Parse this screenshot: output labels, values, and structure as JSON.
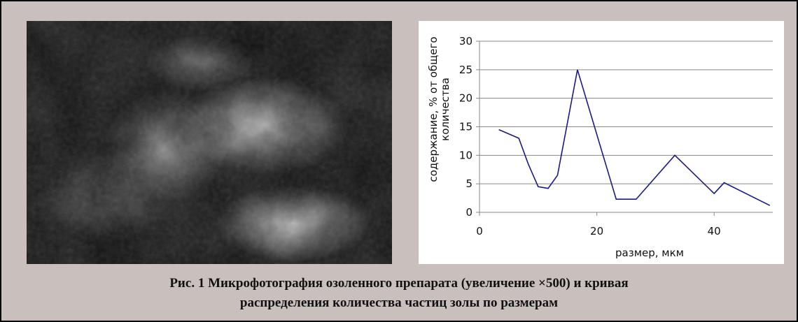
{
  "chart_data": {
    "type": "line",
    "xlabel": "размер, мкм",
    "ylabel": [
      "содержание, % от общего",
      "количества"
    ],
    "x": [
      3.3,
      6.7,
      8.3,
      10,
      11.7,
      13.3,
      16.7,
      23.3,
      26.7,
      33.3,
      40,
      41.7,
      49.5
    ],
    "series": [
      {
        "color": "#1a1a8c",
        "values": [
          14.5,
          13,
          8.5,
          4.5,
          4.2,
          6.5,
          25,
          2.3,
          2.3,
          10,
          3.3,
          5.2,
          1.2
        ]
      }
    ],
    "xlim": [
      0,
      50
    ],
    "xticks": [
      0,
      20,
      40
    ],
    "ylim": [
      0,
      30
    ],
    "yticks": [
      0,
      5,
      10,
      15,
      20,
      25,
      30
    ],
    "grid": true
  },
  "caption": [
    "Рис. 1 Микрофотография озоленного препарата (увеличение ×500) и кривая",
    "распределения количества частиц золы по размерам"
  ]
}
